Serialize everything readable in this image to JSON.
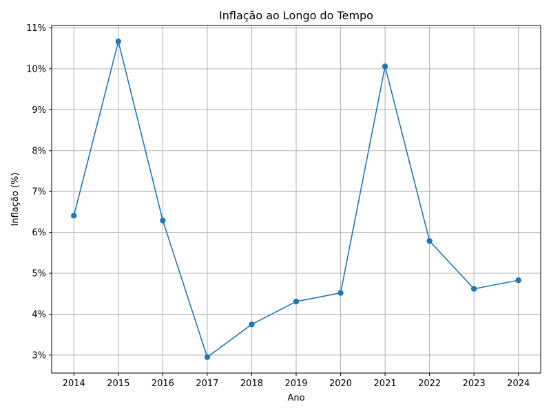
{
  "chart_data": {
    "type": "line",
    "title": "Inflação ao Longo do Tempo",
    "xlabel": "Ano",
    "ylabel": "Inflação (%)",
    "x": [
      2014,
      2015,
      2016,
      2017,
      2018,
      2019,
      2020,
      2021,
      2022,
      2023,
      2024
    ],
    "series": [
      {
        "values": [
          6.41,
          10.67,
          6.29,
          2.95,
          3.75,
          4.31,
          4.52,
          10.06,
          5.79,
          4.62,
          4.83
        ]
      }
    ],
    "x_ticks": [
      "2014",
      "2015",
      "2016",
      "2017",
      "2018",
      "2019",
      "2020",
      "2021",
      "2022",
      "2023",
      "2024"
    ],
    "y_ticks": [
      "3%",
      "4%",
      "5%",
      "6%",
      "7%",
      "8%",
      "9%",
      "10%",
      "11%"
    ],
    "y_tick_values": [
      3,
      4,
      5,
      6,
      7,
      8,
      9,
      10,
      11
    ],
    "xlim": [
      2013.5,
      2024.5
    ],
    "ylim": [
      2.56,
      11.06
    ],
    "grid": true,
    "marker": "circle",
    "colors": {
      "line": "#1f77b4",
      "grid": "#b0b0b0",
      "axes": "#000000"
    }
  }
}
